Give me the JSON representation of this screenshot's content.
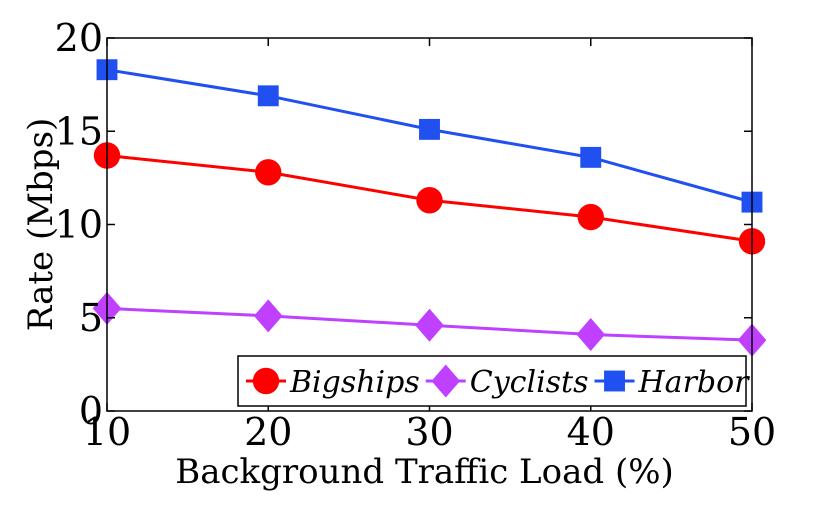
{
  "chart_data": {
    "type": "line",
    "title": "",
    "xlabel": "Background Traffic Load (%)",
    "ylabel": "Rate (Mbps)",
    "x": [
      10,
      20,
      30,
      40,
      50
    ],
    "xlim": [
      10,
      50
    ],
    "ylim": [
      0,
      20
    ],
    "xticks": [
      "10",
      "20",
      "30",
      "40",
      "50"
    ],
    "yticks": [
      "0",
      "5",
      "10",
      "15",
      "20"
    ],
    "grid": false,
    "legend_position": "bottom-right",
    "series": [
      {
        "name": "Bigships",
        "marker": "circle",
        "color": "#ff0000",
        "values": [
          13.7,
          12.8,
          11.3,
          10.4,
          9.1
        ]
      },
      {
        "name": "Cyclists",
        "marker": "diamond",
        "color": "#bf40ff",
        "values": [
          5.5,
          5.1,
          4.6,
          4.1,
          3.8
        ]
      },
      {
        "name": "Harbor",
        "marker": "square",
        "color": "#2050f0",
        "values": [
          18.3,
          16.9,
          15.1,
          13.6,
          11.2
        ]
      }
    ]
  }
}
